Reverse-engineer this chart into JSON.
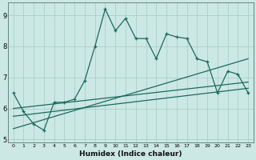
{
  "title": "",
  "xlabel": "Humidex (Indice chaleur)",
  "xlim": [
    -0.5,
    23.5
  ],
  "ylim": [
    4.9,
    9.4
  ],
  "xticks": [
    0,
    1,
    2,
    3,
    4,
    5,
    6,
    7,
    8,
    9,
    10,
    11,
    12,
    13,
    14,
    15,
    16,
    17,
    18,
    19,
    20,
    21,
    22,
    23
  ],
  "yticks": [
    5,
    6,
    7,
    8,
    9
  ],
  "bg_color": "#cce8e4",
  "grid_color": "#aacfc9",
  "line_color": "#1a6b5a",
  "main_line_x": [
    0,
    1,
    2,
    3,
    4,
    5,
    6,
    7,
    8,
    9,
    10,
    11,
    12,
    13,
    14,
    15,
    16,
    17,
    18,
    19,
    20,
    21,
    22,
    23
  ],
  "main_line_y": [
    6.5,
    5.9,
    5.5,
    5.3,
    6.2,
    6.2,
    6.3,
    6.9,
    8.0,
    9.2,
    8.5,
    8.9,
    8.25,
    8.25,
    7.6,
    8.4,
    8.3,
    8.25,
    7.6,
    7.5,
    6.5,
    7.2,
    7.1,
    6.5
  ],
  "trend1_x": [
    0,
    23
  ],
  "trend1_y": [
    6.0,
    6.85
  ],
  "trend2_x": [
    0,
    23
  ],
  "trend2_y": [
    5.75,
    6.65
  ],
  "trend3_x": [
    0,
    23
  ],
  "trend3_y": [
    5.35,
    7.6
  ]
}
